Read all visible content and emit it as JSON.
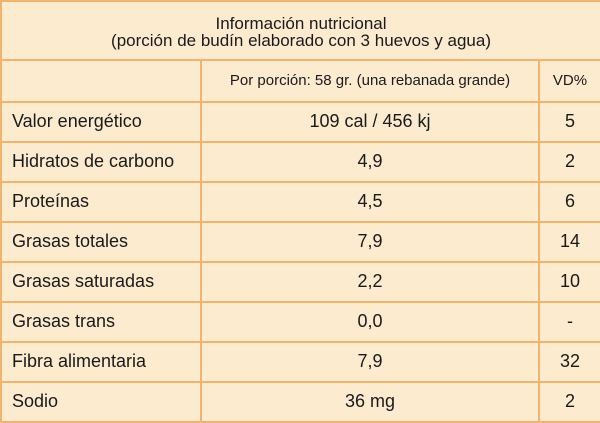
{
  "title": {
    "line1": "Información nutricional",
    "line2": "(porción de budín elaborado con 3 huevos y agua)"
  },
  "header": {
    "portion": "Por porción: 58 gr. (una rebanada grande)",
    "vd": "VD%"
  },
  "rows": [
    {
      "name": "Valor energético",
      "value": "109 cal / 456 kj",
      "vd": "5"
    },
    {
      "name": "Hidratos de carbono",
      "value": "4,9",
      "vd": "2"
    },
    {
      "name": "Proteínas",
      "value": "4,5",
      "vd": "6"
    },
    {
      "name": "Grasas totales",
      "value": "7,9",
      "vd": "14"
    },
    {
      "name": "Grasas saturadas",
      "value": "2,2",
      "vd": "10"
    },
    {
      "name": "Grasas trans",
      "value": "0,0",
      "vd": "-"
    },
    {
      "name": "Fibra alimentaria",
      "value": "7,9",
      "vd": "32"
    },
    {
      "name": "Sodio",
      "value": "36 mg",
      "vd": "2"
    }
  ],
  "colors": {
    "background": "#fdebd0",
    "border": "#f3b26d"
  }
}
